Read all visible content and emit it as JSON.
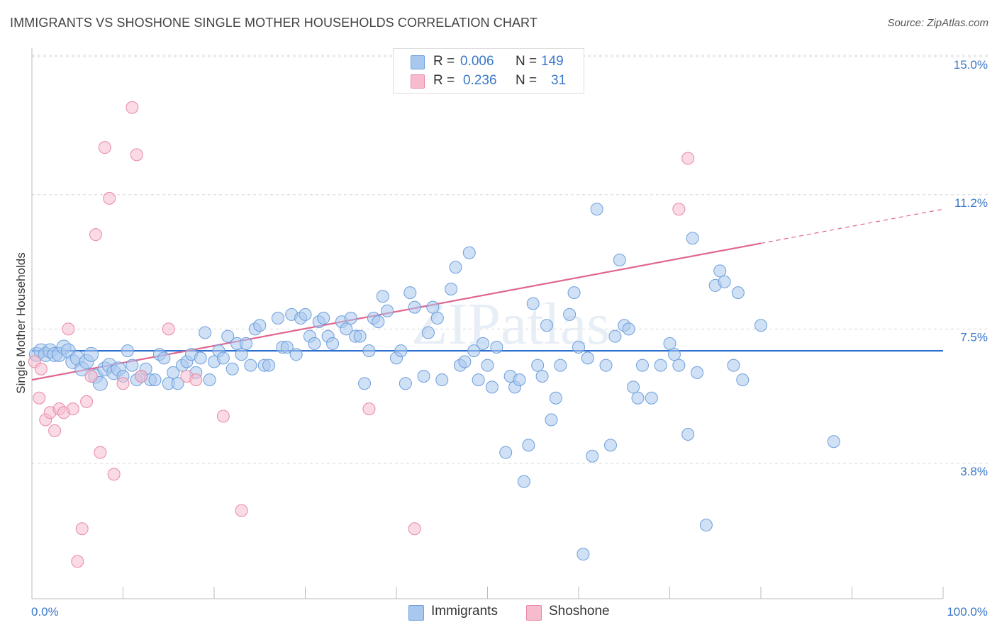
{
  "header": {
    "title": "IMMIGRANTS VS SHOSHONE SINGLE MOTHER HOUSEHOLDS CORRELATION CHART",
    "source": "Source: ZipAtlas.com"
  },
  "legend": {
    "rows": [
      {
        "r_label": "R =",
        "r_value": "0.006",
        "n_label": "N =",
        "n_value": "149"
      },
      {
        "r_label": "R =",
        "r_value": "0.236",
        "n_label": "N =",
        "n_value": "31"
      }
    ],
    "series_names": [
      "Immigrants",
      "Shoshone"
    ]
  },
  "watermark": "ZIPatlas",
  "colors": {
    "blue_fill": "#a9c8ef",
    "blue_stroke": "#6d9fdc",
    "blue_line": "#2f6fcf",
    "pink_fill": "#f6bccd",
    "pink_stroke": "#e88aa6",
    "pink_line": "#e0668f",
    "tick_text": "#3a78c9",
    "grid": "#d8d8d8"
  },
  "chart_data": {
    "type": "scatter",
    "title": "IMMIGRANTS VS SHOSHONE SINGLE MOTHER HOUSEHOLDS CORRELATION CHART",
    "xlabel": "",
    "ylabel": "Single Mother Households",
    "x_tick_labels": [
      "0.0%",
      "100.0%"
    ],
    "y_tick_labels": [
      "3.8%",
      "7.5%",
      "11.2%",
      "15.0%"
    ],
    "y_ticks": [
      3.8,
      7.5,
      11.2,
      15.0
    ],
    "xlim": [
      0,
      100
    ],
    "ylim": [
      0.5,
      15.8
    ],
    "grid": "horizontal dashed",
    "legend_placement": "top-center",
    "series": [
      {
        "name": "Immigrants",
        "trend": {
          "x0": 0,
          "y0": 6.9,
          "x1": 100,
          "y1": 6.9
        },
        "points": [
          [
            0.5,
            6.8
          ],
          [
            1,
            6.9
          ],
          [
            1.5,
            6.8
          ],
          [
            2,
            6.9
          ],
          [
            2.5,
            6.8
          ],
          [
            3,
            6.8
          ],
          [
            3.5,
            7.0
          ],
          [
            4,
            6.9
          ],
          [
            4.5,
            6.6
          ],
          [
            5,
            6.7
          ],
          [
            5.5,
            6.4
          ],
          [
            6,
            6.6
          ],
          [
            6.5,
            6.8
          ],
          [
            7,
            6.2
          ],
          [
            7.5,
            6.0
          ],
          [
            8,
            6.4
          ],
          [
            8.5,
            6.5
          ],
          [
            9,
            6.3
          ],
          [
            9.5,
            6.4
          ],
          [
            10,
            6.2
          ],
          [
            10.5,
            6.9
          ],
          [
            11,
            6.5
          ],
          [
            11.5,
            6.1
          ],
          [
            12,
            6.2
          ],
          [
            12.5,
            6.4
          ],
          [
            13,
            6.1
          ],
          [
            13.5,
            6.1
          ],
          [
            14,
            6.8
          ],
          [
            14.5,
            6.7
          ],
          [
            15,
            6.0
          ],
          [
            15.5,
            6.3
          ],
          [
            16,
            6.0
          ],
          [
            16.5,
            6.5
          ],
          [
            17,
            6.6
          ],
          [
            17.5,
            6.8
          ],
          [
            18,
            6.3
          ],
          [
            18.5,
            6.7
          ],
          [
            19,
            7.4
          ],
          [
            19.5,
            6.1
          ],
          [
            20,
            6.6
          ],
          [
            20.5,
            6.9
          ],
          [
            21,
            6.7
          ],
          [
            21.5,
            7.3
          ],
          [
            22,
            6.4
          ],
          [
            22.5,
            7.1
          ],
          [
            23,
            6.8
          ],
          [
            23.5,
            7.1
          ],
          [
            24,
            6.5
          ],
          [
            24.5,
            7.5
          ],
          [
            25,
            7.6
          ],
          [
            25.5,
            6.5
          ],
          [
            26,
            6.5
          ],
          [
            27,
            7.8
          ],
          [
            27.5,
            7.0
          ],
          [
            28,
            7.0
          ],
          [
            28.5,
            7.9
          ],
          [
            29,
            6.8
          ],
          [
            29.5,
            7.8
          ],
          [
            30,
            7.9
          ],
          [
            30.5,
            7.3
          ],
          [
            31,
            7.1
          ],
          [
            31.5,
            7.7
          ],
          [
            32,
            7.8
          ],
          [
            32.5,
            7.3
          ],
          [
            33,
            7.1
          ],
          [
            34,
            7.7
          ],
          [
            34.5,
            7.5
          ],
          [
            35,
            7.8
          ],
          [
            35.5,
            7.3
          ],
          [
            36,
            7.3
          ],
          [
            36.5,
            6.0
          ],
          [
            37,
            6.9
          ],
          [
            37.5,
            7.8
          ],
          [
            38,
            7.7
          ],
          [
            38.5,
            8.4
          ],
          [
            39,
            8.0
          ],
          [
            40,
            6.7
          ],
          [
            40.5,
            6.9
          ],
          [
            41,
            6.0
          ],
          [
            41.5,
            8.5
          ],
          [
            42,
            8.1
          ],
          [
            43,
            6.2
          ],
          [
            43.5,
            7.4
          ],
          [
            44,
            8.1
          ],
          [
            44.5,
            7.8
          ],
          [
            45,
            6.1
          ],
          [
            46,
            8.6
          ],
          [
            46.5,
            9.2
          ],
          [
            47,
            6.5
          ],
          [
            47.5,
            6.6
          ],
          [
            48,
            9.6
          ],
          [
            48.5,
            6.9
          ],
          [
            49,
            6.1
          ],
          [
            49.5,
            7.1
          ],
          [
            50,
            6.5
          ],
          [
            50.5,
            5.9
          ],
          [
            51,
            7.0
          ],
          [
            52,
            4.1
          ],
          [
            52.5,
            6.2
          ],
          [
            53,
            5.9
          ],
          [
            53.5,
            6.1
          ],
          [
            54,
            3.3
          ],
          [
            54.5,
            4.3
          ],
          [
            55,
            8.2
          ],
          [
            55.5,
            6.5
          ],
          [
            56,
            6.2
          ],
          [
            56.5,
            7.6
          ],
          [
            57,
            5.0
          ],
          [
            57.5,
            5.6
          ],
          [
            58,
            6.5
          ],
          [
            59,
            7.9
          ],
          [
            59.5,
            8.5
          ],
          [
            60,
            7.0
          ],
          [
            60.5,
            1.3
          ],
          [
            61,
            6.7
          ],
          [
            61.5,
            4.0
          ],
          [
            62,
            10.8
          ],
          [
            63,
            6.5
          ],
          [
            63.5,
            4.3
          ],
          [
            64,
            7.3
          ],
          [
            64.5,
            9.4
          ],
          [
            65,
            7.6
          ],
          [
            65.5,
            7.5
          ],
          [
            66,
            5.9
          ],
          [
            66.5,
            5.6
          ],
          [
            67,
            6.5
          ],
          [
            68,
            5.6
          ],
          [
            69,
            6.5
          ],
          [
            70,
            7.1
          ],
          [
            70.5,
            6.8
          ],
          [
            71,
            6.5
          ],
          [
            72,
            4.6
          ],
          [
            72.5,
            10.0
          ],
          [
            73,
            6.3
          ],
          [
            74,
            2.1
          ],
          [
            75,
            8.7
          ],
          [
            75.5,
            9.1
          ],
          [
            76,
            8.8
          ],
          [
            77,
            6.5
          ],
          [
            77.5,
            8.5
          ],
          [
            78,
            6.1
          ],
          [
            80,
            7.6
          ],
          [
            88,
            4.4
          ]
        ]
      },
      {
        "name": "Shoshone",
        "trend": {
          "x0": 0,
          "y0": 6.1,
          "x1": 100,
          "y1": 10.8
        },
        "trend_solid_until_x": 80,
        "points": [
          [
            0.3,
            6.6
          ],
          [
            0.8,
            5.6
          ],
          [
            1,
            6.4
          ],
          [
            1.5,
            5.0
          ],
          [
            2,
            5.2
          ],
          [
            2.5,
            4.7
          ],
          [
            3,
            5.3
          ],
          [
            3.5,
            5.2
          ],
          [
            4,
            7.5
          ],
          [
            4.5,
            5.3
          ],
          [
            5,
            1.1
          ],
          [
            5.5,
            2.0
          ],
          [
            6,
            5.5
          ],
          [
            6.5,
            6.2
          ],
          [
            7,
            10.1
          ],
          [
            7.5,
            4.1
          ],
          [
            8,
            12.5
          ],
          [
            8.5,
            11.1
          ],
          [
            9,
            3.5
          ],
          [
            10,
            6.0
          ],
          [
            11,
            13.6
          ],
          [
            11.5,
            12.3
          ],
          [
            12,
            6.2
          ],
          [
            15,
            7.5
          ],
          [
            17,
            6.2
          ],
          [
            18,
            6.1
          ],
          [
            21,
            5.1
          ],
          [
            23,
            2.5
          ],
          [
            37,
            5.3
          ],
          [
            42,
            2.0
          ],
          [
            71,
            10.8
          ],
          [
            72,
            12.2
          ]
        ]
      }
    ]
  }
}
